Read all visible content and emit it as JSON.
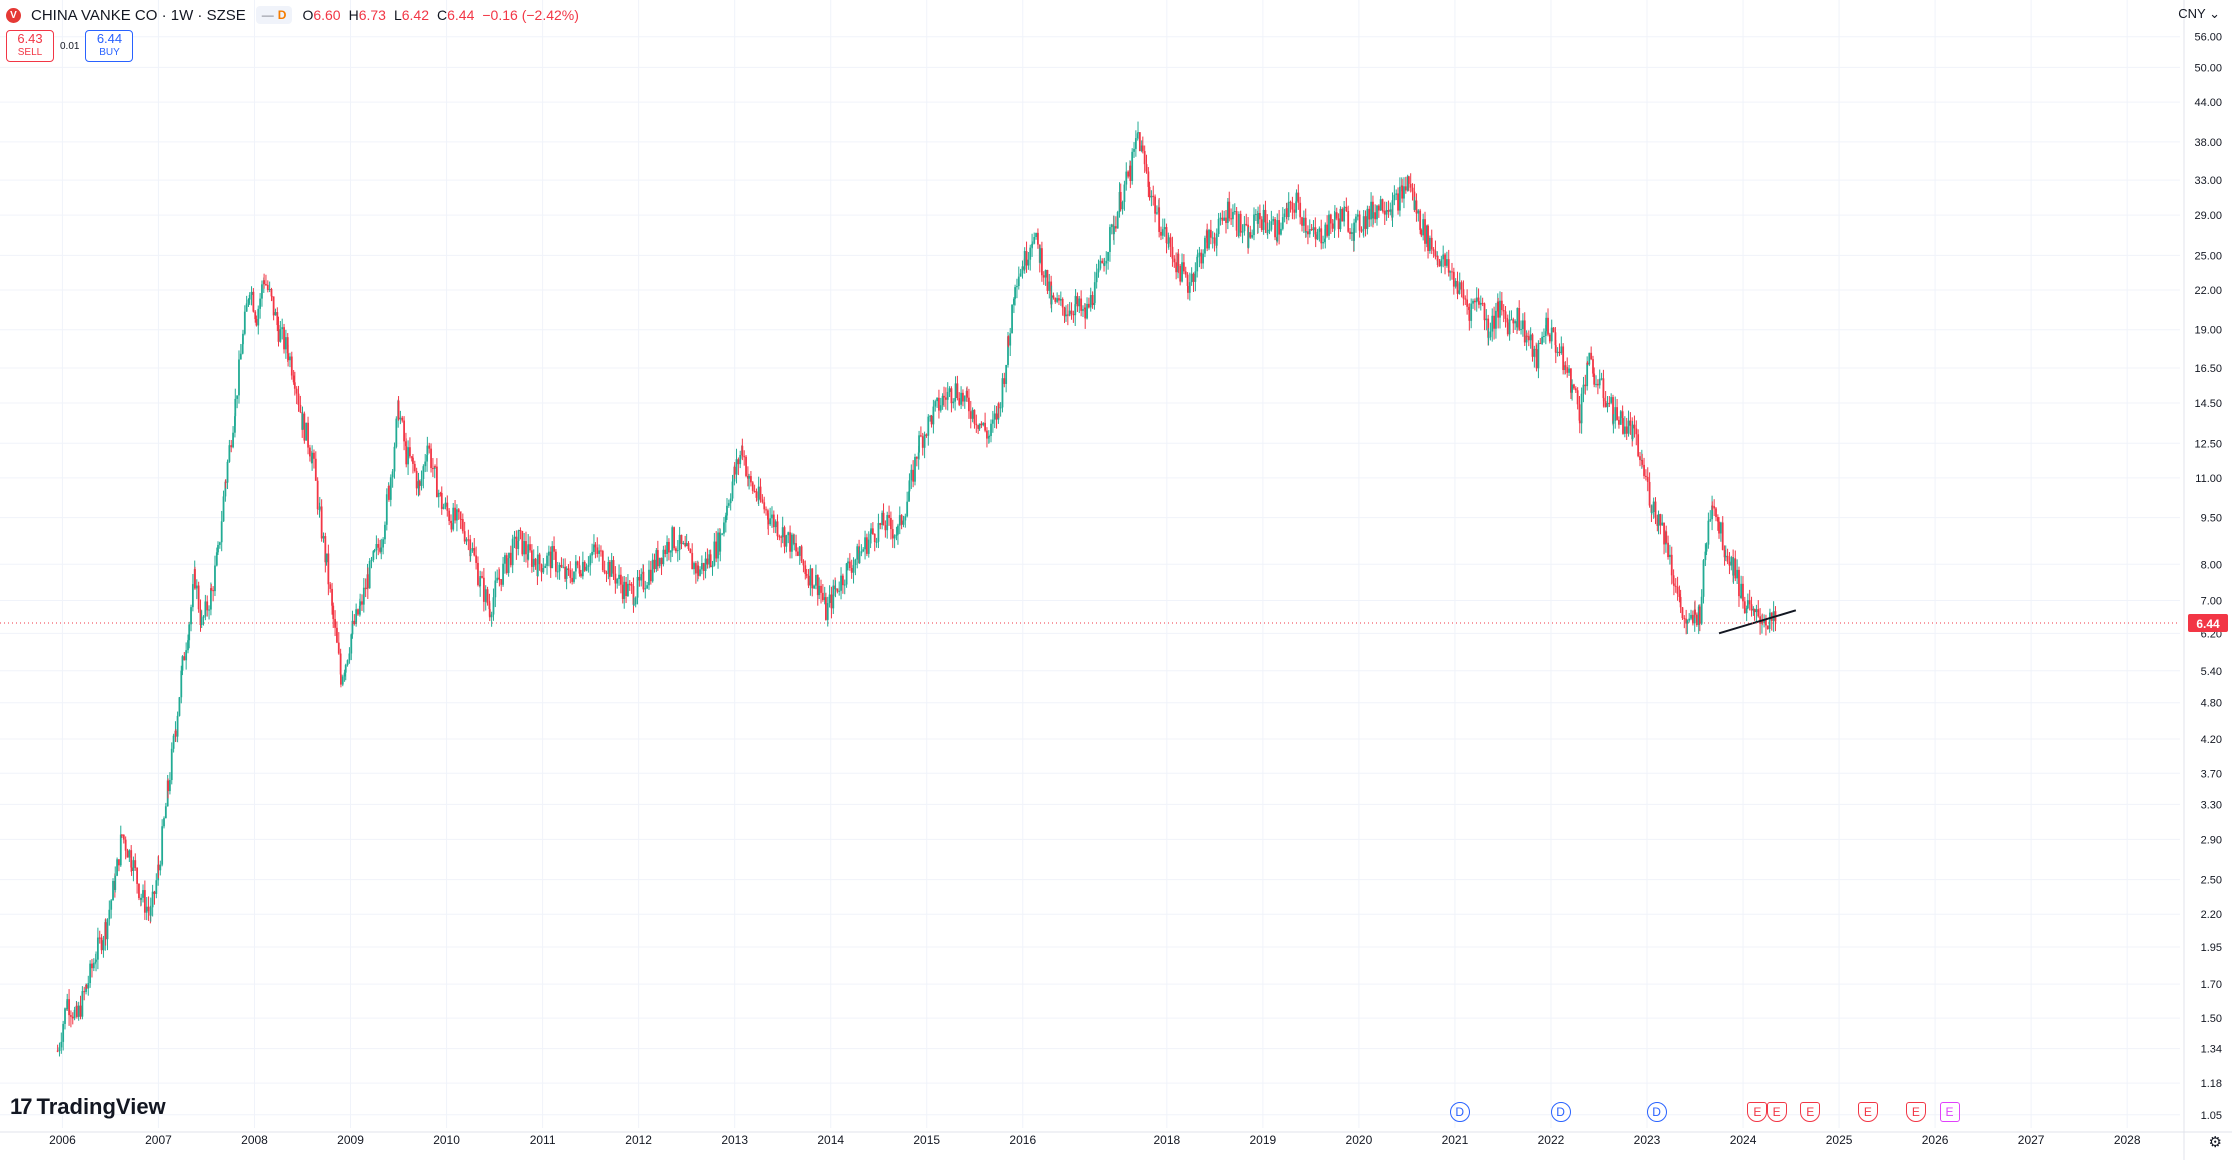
{
  "header": {
    "badge": "V",
    "symbol": "CHINA VANKE CO · 1W · SZSE",
    "pill_dash": "—",
    "pill_d": "D",
    "ohlc": [
      {
        "k": "O",
        "v": "6.60"
      },
      {
        "k": "H",
        "v": "6.73"
      },
      {
        "k": "L",
        "v": "6.42"
      },
      {
        "k": "C",
        "v": "6.44"
      }
    ],
    "change": "−0.16 (−2.42%)"
  },
  "trade": {
    "sell_price": "6.43",
    "sell_label": "SELL",
    "spread": "0.01",
    "buy_price": "6.44",
    "buy_label": "BUY"
  },
  "currency": "CNY ⌄",
  "logo_text": "TradingView",
  "logo_mark": "17",
  "settings_icon": "⚙",
  "last_price_label": "6.44",
  "colors": {
    "up": "#22ab94",
    "down": "#f23645",
    "grid": "#f0f3fa",
    "price_line": "#f23645"
  },
  "events": [
    {
      "type": "dividend",
      "label": "D",
      "year": 2020.55
    },
    {
      "type": "dividend",
      "label": "D",
      "year": 2021.6
    },
    {
      "type": "dividend",
      "label": "D",
      "year": 2022.6
    },
    {
      "type": "earnings",
      "label": "E",
      "year": 2023.65
    },
    {
      "type": "earnings",
      "label": "E",
      "year": 2023.85
    },
    {
      "type": "earnings",
      "label": "E",
      "year": 2024.2
    },
    {
      "type": "earnings",
      "label": "E",
      "year": 2024.8
    },
    {
      "type": "earnings",
      "label": "E",
      "year": 2025.3
    },
    {
      "type": "earnings2",
      "label": "E",
      "year": 2025.65
    }
  ],
  "chart_data": {
    "type": "candlestick",
    "title": "CHINA VANKE CO · 1W · SZSE",
    "y_scale": "log",
    "ylim": [
      1.0,
      60.0
    ],
    "xlim": [
      2005.35,
      2028.05
    ],
    "y_ticks": [
      56.0,
      50.0,
      44.0,
      38.0,
      33.0,
      29.0,
      25.0,
      22.0,
      19.0,
      16.5,
      14.5,
      12.5,
      11.0,
      9.5,
      8.0,
      7.0,
      6.2,
      5.4,
      4.8,
      4.2,
      3.7,
      3.3,
      2.9,
      2.5,
      2.2,
      1.95,
      1.7,
      1.5,
      1.34,
      1.18,
      1.05
    ],
    "x_ticks": [
      "2006",
      "2007",
      "2008",
      "2009",
      "2010",
      "2011",
      "2012",
      "2013",
      "2014",
      "2015",
      "2016",
      "2018",
      "2019",
      "2020",
      "2021",
      "2022",
      "2023",
      "2024",
      "2025",
      "2026",
      "2027",
      "2028"
    ],
    "x_tick_years": [
      2006,
      2007,
      2008,
      2009,
      2010,
      2011,
      2012,
      2013,
      2014,
      2015,
      2016,
      2017.5,
      2018.5,
      2019.5,
      2020.5,
      2021.5,
      2022.5,
      2023.5,
      2024.5,
      2025.5,
      2026.5,
      2027.5
    ],
    "last_price": 6.44,
    "price_path": [
      [
        2005.95,
        1.33
      ],
      [
        2006.05,
        1.6
      ],
      [
        2006.15,
        1.5
      ],
      [
        2006.25,
        1.68
      ],
      [
        2006.35,
        1.9
      ],
      [
        2006.45,
        2.1
      ],
      [
        2006.55,
        2.5
      ],
      [
        2006.62,
        2.95
      ],
      [
        2006.72,
        2.7
      ],
      [
        2006.82,
        2.35
      ],
      [
        2006.92,
        2.2
      ],
      [
        2007.0,
        2.6
      ],
      [
        2007.1,
        3.5
      ],
      [
        2007.18,
        4.4
      ],
      [
        2007.25,
        5.5
      ],
      [
        2007.32,
        6.5
      ],
      [
        2007.38,
        7.6
      ],
      [
        2007.45,
        6.4
      ],
      [
        2007.55,
        7.2
      ],
      [
        2007.62,
        8.3
      ],
      [
        2007.7,
        11.0
      ],
      [
        2007.8,
        14.5
      ],
      [
        2007.88,
        18.5
      ],
      [
        2007.95,
        22.5
      ],
      [
        2008.02,
        20.0
      ],
      [
        2008.1,
        23.0
      ],
      [
        2008.18,
        21.0
      ],
      [
        2008.25,
        19.0
      ],
      [
        2008.35,
        17.5
      ],
      [
        2008.42,
        16.0
      ],
      [
        2008.5,
        13.5
      ],
      [
        2008.6,
        12.0
      ],
      [
        2008.68,
        9.5
      ],
      [
        2008.75,
        8.0
      ],
      [
        2008.82,
        6.5
      ],
      [
        2008.9,
        5.3
      ],
      [
        2008.95,
        5.6
      ],
      [
        2009.02,
        6.3
      ],
      [
        2009.1,
        6.8
      ],
      [
        2009.18,
        7.6
      ],
      [
        2009.25,
        8.2
      ],
      [
        2009.32,
        8.8
      ],
      [
        2009.4,
        10.5
      ],
      [
        2009.5,
        14.2
      ],
      [
        2009.58,
        12.0
      ],
      [
        2009.65,
        11.5
      ],
      [
        2009.72,
        10.5
      ],
      [
        2009.8,
        12.5
      ],
      [
        2009.88,
        11.0
      ],
      [
        2009.95,
        10.0
      ],
      [
        2010.05,
        9.5
      ],
      [
        2010.15,
        9.3
      ],
      [
        2010.25,
        8.6
      ],
      [
        2010.35,
        7.5
      ],
      [
        2010.45,
        6.8
      ],
      [
        2010.55,
        7.6
      ],
      [
        2010.65,
        8.2
      ],
      [
        2010.75,
        8.8
      ],
      [
        2010.85,
        8.3
      ],
      [
        2010.95,
        8.0
      ],
      [
        2011.1,
        8.2
      ],
      [
        2011.25,
        7.6
      ],
      [
        2011.4,
        8.0
      ],
      [
        2011.55,
        8.4
      ],
      [
        2011.7,
        7.9
      ],
      [
        2011.85,
        7.3
      ],
      [
        2011.95,
        7.2
      ],
      [
        2012.05,
        7.5
      ],
      [
        2012.2,
        8.2
      ],
      [
        2012.35,
        8.8
      ],
      [
        2012.5,
        8.3
      ],
      [
        2012.62,
        7.8
      ],
      [
        2012.75,
        8.2
      ],
      [
        2012.85,
        8.8
      ],
      [
        2012.92,
        10.0
      ],
      [
        2013.0,
        11.2
      ],
      [
        2013.08,
        12.3
      ],
      [
        2013.15,
        10.8
      ],
      [
        2013.25,
        10.2
      ],
      [
        2013.35,
        9.6
      ],
      [
        2013.5,
        9.0
      ],
      [
        2013.62,
        8.5
      ],
      [
        2013.75,
        7.8
      ],
      [
        2013.88,
        7.4
      ],
      [
        2013.95,
        6.7
      ],
      [
        2014.05,
        7.3
      ],
      [
        2014.18,
        7.9
      ],
      [
        2014.3,
        8.3
      ],
      [
        2014.42,
        8.9
      ],
      [
        2014.55,
        9.3
      ],
      [
        2014.7,
        9.0
      ],
      [
        2014.82,
        10.5
      ],
      [
        2014.92,
        12.5
      ],
      [
        2015.05,
        13.8
      ],
      [
        2015.18,
        14.8
      ],
      [
        2015.3,
        15.3
      ],
      [
        2015.42,
        14.5
      ],
      [
        2015.55,
        13.5
      ],
      [
        2015.65,
        12.8
      ],
      [
        2015.75,
        14.2
      ],
      [
        2015.85,
        18.0
      ],
      [
        2015.92,
        23.0
      ],
      [
        2016.02,
        24.5
      ],
      [
        2016.1,
        27.0
      ],
      [
        2016.18,
        25.0
      ],
      [
        2016.3,
        21.0
      ],
      [
        2016.45,
        20.5
      ],
      [
        2016.55,
        20.8
      ],
      [
        2016.65,
        20.0
      ],
      [
        2016.75,
        22.0
      ],
      [
        2016.85,
        25.0
      ],
      [
        2016.95,
        28.0
      ],
      [
        2017.02,
        31.0
      ],
      [
        2017.12,
        34.0
      ],
      [
        2017.2,
        39.0
      ],
      [
        2017.25,
        36.0
      ],
      [
        2017.32,
        32.0
      ],
      [
        2017.42,
        28.5
      ],
      [
        2017.52,
        26.0
      ],
      [
        2017.62,
        24.0
      ],
      [
        2017.72,
        22.5
      ],
      [
        2017.82,
        24.5
      ],
      [
        2017.92,
        26.5
      ],
      [
        2018.02,
        27.0
      ],
      [
        2018.15,
        30.0
      ],
      [
        2018.25,
        28.0
      ],
      [
        2018.35,
        26.5
      ],
      [
        2018.45,
        29.0
      ],
      [
        2018.55,
        28.0
      ],
      [
        2018.65,
        27.5
      ],
      [
        2018.75,
        29.0
      ],
      [
        2018.85,
        30.5
      ],
      [
        2018.95,
        28.0
      ],
      [
        2019.05,
        26.5
      ],
      [
        2019.15,
        27.5
      ],
      [
        2019.25,
        28.5
      ],
      [
        2019.35,
        29.0
      ],
      [
        2019.45,
        27.5
      ],
      [
        2019.55,
        28.5
      ],
      [
        2019.65,
        29.5
      ],
      [
        2019.75,
        30.5
      ],
      [
        2019.85,
        30.0
      ],
      [
        2019.95,
        31.5
      ],
      [
        2020.02,
        33.0
      ],
      [
        2020.08,
        30.0
      ],
      [
        2020.15,
        28.0
      ],
      [
        2020.22,
        26.5
      ],
      [
        2020.32,
        25.0
      ],
      [
        2020.45,
        23.5
      ],
      [
        2020.55,
        22.0
      ],
      [
        2020.65,
        20.5
      ],
      [
        2020.75,
        21.5
      ],
      [
        2020.85,
        19.0
      ],
      [
        2020.95,
        20.5
      ],
      [
        2021.05,
        19.5
      ],
      [
        2021.15,
        20.0
      ],
      [
        2021.25,
        18.5
      ],
      [
        2021.35,
        17.0
      ],
      [
        2021.45,
        19.5
      ],
      [
        2021.55,
        18.0
      ],
      [
        2021.65,
        16.5
      ],
      [
        2021.72,
        15.5
      ],
      [
        2021.8,
        14.0
      ],
      [
        2021.88,
        17.0
      ],
      [
        2021.95,
        16.0
      ],
      [
        2022.05,
        15.0
      ],
      [
        2022.15,
        14.0
      ],
      [
        2022.25,
        13.5
      ],
      [
        2022.35,
        13.0
      ],
      [
        2022.45,
        11.5
      ],
      [
        2022.55,
        10.0
      ],
      [
        2022.62,
        9.5
      ],
      [
        2022.7,
        8.8
      ],
      [
        2022.78,
        7.6
      ],
      [
        2022.85,
        6.8
      ],
      [
        2022.92,
        6.3
      ],
      [
        2023.0,
        6.6
      ],
      [
        2023.05,
        6.7
      ],
      [
        2023.12,
        8.8
      ],
      [
        2023.18,
        10.3
      ],
      [
        2023.25,
        9.2
      ],
      [
        2023.32,
        8.4
      ],
      [
        2023.4,
        8.0
      ],
      [
        2023.48,
        7.2
      ],
      [
        2023.55,
        6.8
      ],
      [
        2023.62,
        6.55
      ],
      [
        2023.7,
        6.6
      ],
      [
        2023.78,
        6.45
      ],
      [
        2023.85,
        6.44
      ]
    ],
    "trend_line": [
      [
        2023.25,
        6.2
      ],
      [
        2024.05,
        6.75
      ]
    ]
  }
}
